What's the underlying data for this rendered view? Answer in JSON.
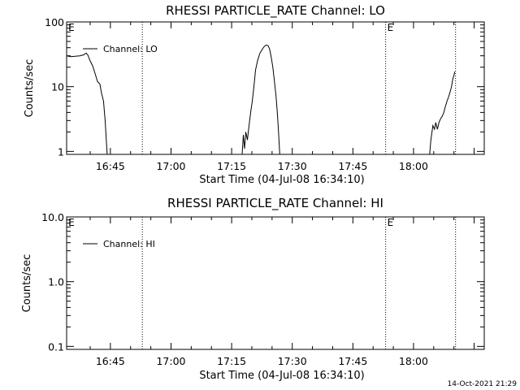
{
  "chart_data": [
    {
      "type": "line",
      "title": "RHESSI PARTICLE_RATE Channel: LO",
      "xlabel": "Start Time (04-Jul-08 16:34:10)",
      "ylabel": "Counts/sec",
      "yscale": "log",
      "ylim": [
        0.9,
        100
      ],
      "xlim_min": [
        34.17,
        103.5
      ],
      "xticks": [
        {
          "t": 45,
          "label": "16:45"
        },
        {
          "t": 60,
          "label": "17:00"
        },
        {
          "t": 75,
          "label": "17:15"
        },
        {
          "t": 90,
          "label": "17:30"
        },
        {
          "t": 105,
          "label": "17:45"
        },
        {
          "t": 120,
          "label": "18:00"
        }
      ],
      "yticks": [
        {
          "v": 1,
          "label": "1"
        },
        {
          "v": 10,
          "label": "10"
        },
        {
          "v": 100,
          "label": "100"
        }
      ],
      "vlines": [
        52.9,
        113.1,
        130.4
      ],
      "markers": [
        {
          "t": 34.6,
          "label": "E"
        },
        {
          "t": 113.5,
          "label": "E"
        }
      ],
      "legend": {
        "label": "Channel: LO",
        "position": "top-left"
      },
      "series": [
        {
          "name": "Channel: LO",
          "segments": [
            [
              [
                34.17,
                30
              ],
              [
                35.2,
                29
              ],
              [
                36.3,
                29.5
              ],
              [
                37.4,
                30
              ],
              [
                38.4,
                31
              ],
              [
                39.0,
                33
              ],
              [
                39.4,
                31
              ],
              [
                40.0,
                25
              ],
              [
                40.6,
                21
              ],
              [
                41.2,
                16
              ],
              [
                41.8,
                12
              ],
              [
                42.4,
                11
              ],
              [
                42.8,
                8
              ],
              [
                43.3,
                6
              ],
              [
                43.7,
                3
              ],
              [
                44.2,
                0.9
              ]
            ],
            [
              [
                77.6,
                0.9
              ],
              [
                77.9,
                1.8
              ],
              [
                78.2,
                1.1
              ],
              [
                78.5,
                2.0
              ],
              [
                78.9,
                1.5
              ],
              [
                79.3,
                2.5
              ],
              [
                79.7,
                4
              ],
              [
                80.1,
                6
              ],
              [
                80.5,
                10
              ],
              [
                80.9,
                18
              ],
              [
                81.4,
                25
              ],
              [
                82.0,
                33
              ],
              [
                82.6,
                38
              ],
              [
                83.1,
                42
              ],
              [
                83.6,
                44
              ],
              [
                84.0,
                43
              ],
              [
                84.4,
                38
              ],
              [
                84.8,
                28
              ],
              [
                85.2,
                20
              ],
              [
                85.6,
                12
              ],
              [
                86.0,
                7
              ],
              [
                86.3,
                4
              ],
              [
                86.6,
                2
              ],
              [
                86.9,
                0.9
              ]
            ],
            [
              [
                124.0,
                0.9
              ],
              [
                124.3,
                1.5
              ],
              [
                124.8,
                2.5
              ],
              [
                125.2,
                2.2
              ],
              [
                125.5,
                2.8
              ],
              [
                125.9,
                2.2
              ],
              [
                126.3,
                2.8
              ],
              [
                126.7,
                3.2
              ],
              [
                127.1,
                3.5
              ],
              [
                127.5,
                4
              ],
              [
                127.9,
                5
              ],
              [
                128.3,
                6
              ],
              [
                128.7,
                7
              ],
              [
                129.1,
                8.5
              ],
              [
                129.4,
                10
              ],
              [
                129.7,
                13
              ],
              [
                130.0,
                15
              ],
              [
                130.2,
                17
              ]
            ]
          ]
        }
      ]
    },
    {
      "type": "line",
      "title": "RHESSI PARTICLE_RATE Channel: HI",
      "xlabel": "Start Time (04-Jul-08 16:34:10)",
      "ylabel": "Counts/sec",
      "yscale": "log",
      "ylim": [
        0.09,
        10
      ],
      "xlim_min": [
        34.17,
        103.5
      ],
      "xticks": [
        {
          "t": 45,
          "label": "16:45"
        },
        {
          "t": 60,
          "label": "17:00"
        },
        {
          "t": 75,
          "label": "17:15"
        },
        {
          "t": 90,
          "label": "17:30"
        },
        {
          "t": 105,
          "label": "17:45"
        },
        {
          "t": 120,
          "label": "18:00"
        }
      ],
      "yticks": [
        {
          "v": 0.1,
          "label": "0.1"
        },
        {
          "v": 1,
          "label": "1.0"
        },
        {
          "v": 10,
          "label": "10.0"
        }
      ],
      "vlines": [
        52.9,
        113.1,
        130.4
      ],
      "markers": [
        {
          "t": 34.6,
          "label": "E"
        },
        {
          "t": 113.5,
          "label": "E"
        }
      ],
      "legend": {
        "label": "Channel: HI",
        "position": "top-left"
      },
      "series": [
        {
          "name": "Channel: HI",
          "segments": []
        }
      ]
    }
  ],
  "timestamp": "14-Oct-2021 21:29"
}
